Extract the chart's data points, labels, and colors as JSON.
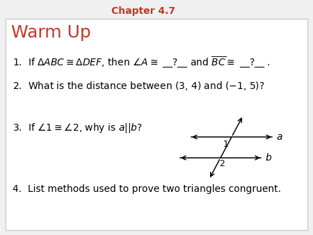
{
  "title": "Chapter 4.7",
  "title_color": "#C0392B",
  "warm_up_text": "Warm Up",
  "warm_up_color": "#C0392B",
  "background_color": "#f0f0f0",
  "box_color": "#ffffff",
  "border_color": "#cccccc",
  "text_color": "#000000",
  "q1": "1.  If $\\Delta ABC \\cong \\Delta DEF$, then $\\angle A \\cong$ \\_\\_?\\_\\_ and $\\overline{BC} \\cong$ \\_\\_?\\_\\_ .",
  "q2": "2.  What is the distance between (3, 4) and ($-$1, 5)?",
  "q3": "3.  If $\\angle 1 \\cong \\angle 2$, why is $a$$||$$b$?",
  "q4": "4.  List methods used to prove two triangles congruent.",
  "figsize": [
    4.5,
    3.38
  ],
  "dpi": 100
}
